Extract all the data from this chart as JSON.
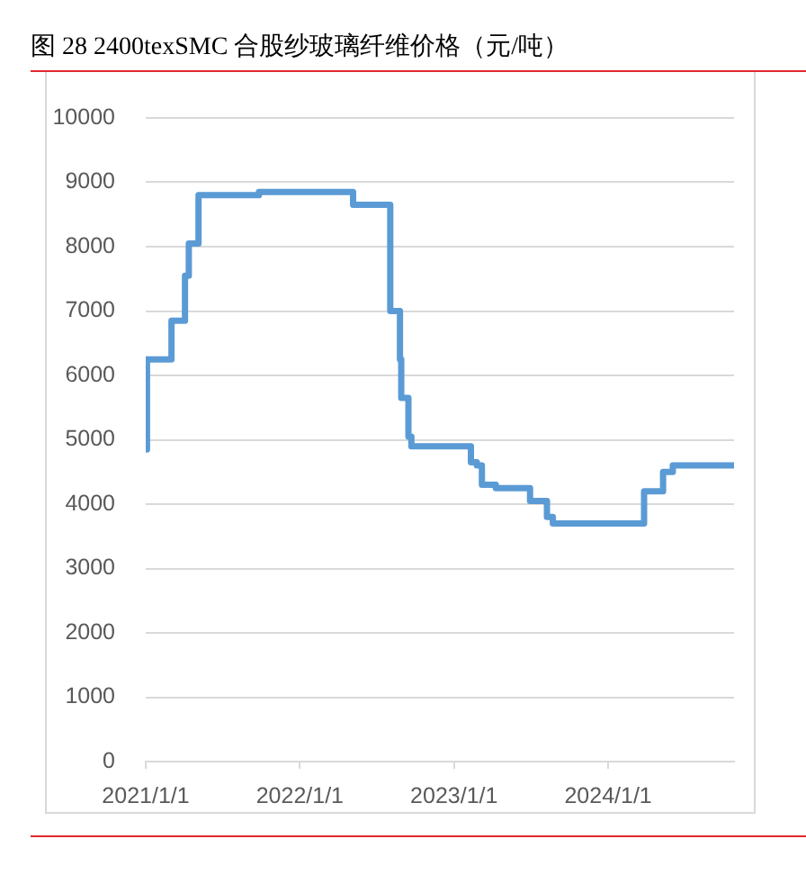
{
  "chart_data": {
    "type": "step",
    "title": "图 28 2400texSMC 合股纱玻璃纤维价格（元/吨）",
    "x": [
      "2021-01-03",
      "2021-01-04",
      "2021-03-03",
      "2021-04-04",
      "2021-04-13",
      "2021-05-06",
      "2021-09-26",
      "2022-05-07",
      "2022-08-03",
      "2022-08-26",
      "2022-08-29",
      "2022-09-15",
      "2022-09-22",
      "2023-02-10",
      "2023-02-24",
      "2023-03-08",
      "2023-04-10",
      "2023-06-30",
      "2023-08-09",
      "2023-08-23",
      "2024-03-26",
      "2024-05-10",
      "2024-06-02",
      "2024-10-24"
    ],
    "values": [
      4850,
      6250,
      6850,
      7550,
      8050,
      8800,
      8850,
      8650,
      7000,
      6250,
      5650,
      5050,
      4900,
      4650,
      4600,
      4300,
      4250,
      4050,
      3800,
      3700,
      4200,
      4500,
      4600,
      4600
    ],
    "color": "#5b9bd5",
    "xlim": [
      "2021-01-01",
      "2024-10-25"
    ],
    "xticks": [
      {
        "value": "2021-01-01",
        "label": "2021/1/1"
      },
      {
        "value": "2022-01-01",
        "label": "2022/1/1"
      },
      {
        "value": "2023-01-01",
        "label": "2023/1/1"
      },
      {
        "value": "2024-01-01",
        "label": "2024/1/1"
      }
    ],
    "ylim": [
      0,
      10000
    ],
    "yticks": [
      0,
      1000,
      2000,
      3000,
      4000,
      5000,
      6000,
      7000,
      8000,
      9000,
      10000
    ],
    "grid": "y",
    "legend": false,
    "marker": "none",
    "line_style": "solid"
  }
}
